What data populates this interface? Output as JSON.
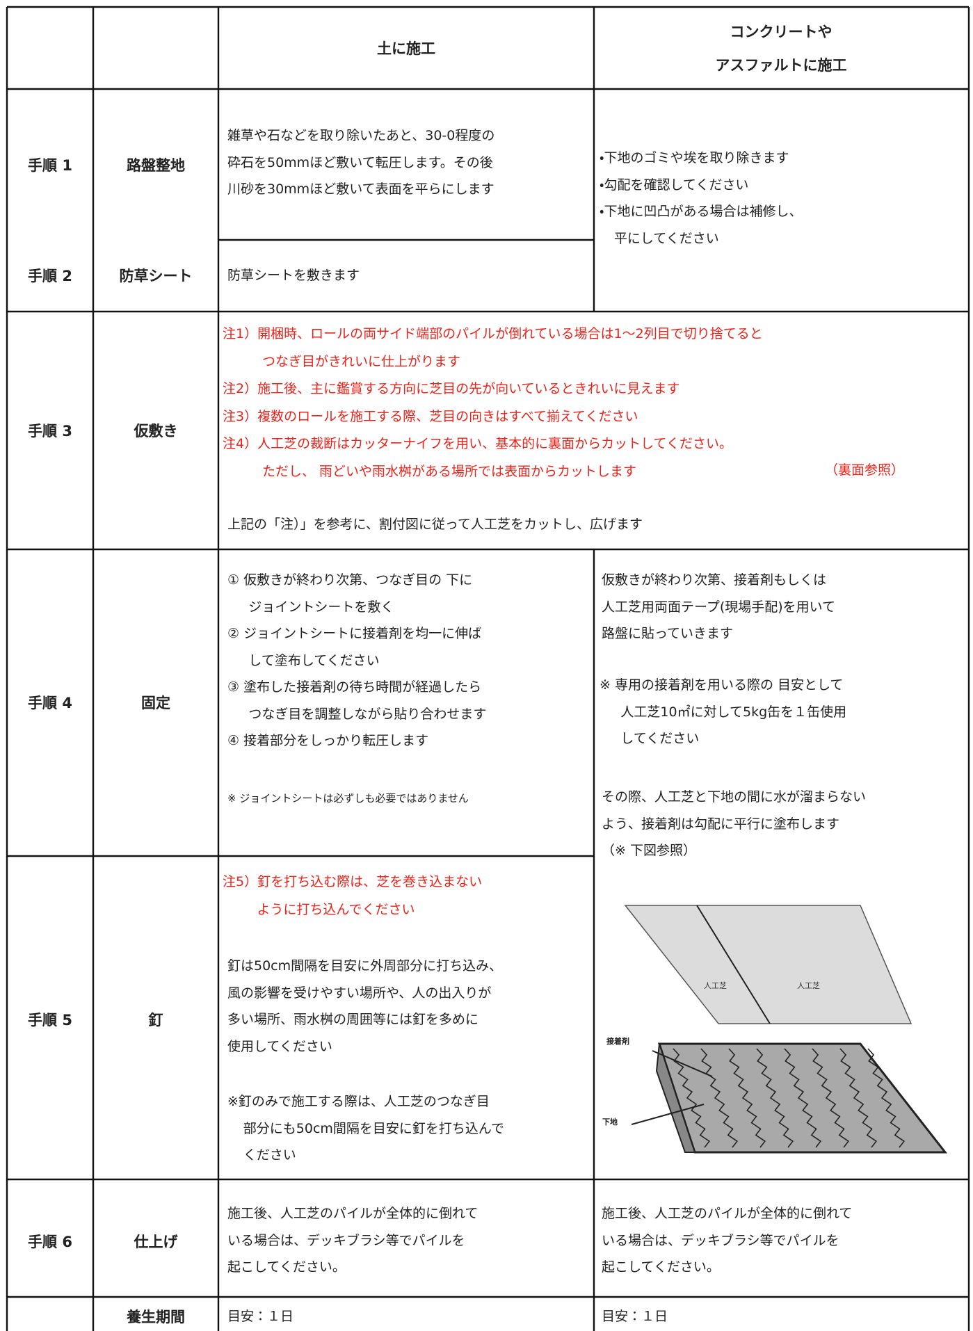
{
  "header": {
    "soil": "土に施工",
    "concrete": [
      "コンクリートや",
      "アスファルトに施工"
    ]
  },
  "steps": [
    {
      "step": "手順 1",
      "name": "路盤整地",
      "soil": [
        [
          "雑草や石などを取り除いたあと、30-0程度の"
        ],
        [
          "砕石を50mmほど敷いて転圧します。その後"
        ],
        [
          "川砂を30mmほど敷いて表面を平らにします"
        ]
      ]
    },
    {
      "step": "手順 2",
      "name": "防草シート",
      "soil": [
        [
          "防草シートを敷きます"
        ]
      ]
    },
    {
      "step": "手順 3",
      "name": "仮敷き",
      "notes": [
        [
          "注1）開梱時、ロールの両サイド端部のパイルが倒れている場合は1〜2列目で切り捨てると",
          "つなぎ目がきれいに仕上がります"
        ],
        [
          "注2）施工後、主に鑑賞する方向に芝目の先が向いているときれいに見えます"
        ],
        [
          "注3）複数のロールを施工する際、芝目の向きはすべて揃えてください"
        ],
        [
          "注4）人工芝の裁断はカッターナイフを用い、基本的に裏面からカットしてください。",
          "ただし、 雨どいや雨水桝がある場所では表面からカットします"
        ]
      ],
      "note_ref": "（裏面参照）",
      "text": "上記の「注）」を参考に、割付図に従って人工芝をカットし、広げます"
    },
    {
      "step": "手順 4",
      "name": "固定",
      "soil": [
        [
          "① 仮敷きが終わり次第、つなぎ目の 下に",
          "ジョイントシートを敷く"
        ],
        [
          "② ジョイントシートに接着剤を均一に伸ば",
          "して塗布してください"
        ],
        [
          "③ 塗布した接着剤の待ち時間が経過したら",
          "つなぎ目を調整しながら貼り合わせます"
        ],
        [
          "④ 接着部分をしっかり転圧します"
        ]
      ],
      "footnote": "※ ジョイントシートは必ずしも必要ではありません"
    },
    {
      "step": "手順 5",
      "name": "釘",
      "notes": [
        [
          "注5）釘を打ち込む際は、芝を巻き込まない",
          "ように打ち込んでください"
        ]
      ],
      "soil": [
        [
          "釘は50cm間隔を目安に外周部分に打ち込み、"
        ],
        [
          "風の影響を受けやすい場所や、人の出入りが"
        ],
        [
          "多い場所、雨水桝の周囲等には釘を多めに"
        ],
        [
          "使用してください"
        ]
      ],
      "footnote": [
        [
          "※釘のみで施工する際は、人工芝のつなぎ目",
          "部分にも50cm間隔を目安に釘を打ち込んで",
          "ください"
        ]
      ]
    },
    {
      "step": "手順 6",
      "name": "仕上げ",
      "soil": [
        [
          "施工後、人工芝のパイルが全体的に倒れて"
        ],
        [
          "いる場合は、デッキブラシ等でパイルを"
        ],
        [
          "起こしてください。"
        ]
      ],
      "concrete": [
        [
          "施工後、人工芝のパイルが全体的に倒れて"
        ],
        [
          "いる場合は、デッキブラシ等でパイルを"
        ],
        [
          "起こしてください。"
        ]
      ]
    }
  ],
  "concrete_steps_1_2": [
    [
      "・下地のゴミや埃を取り除きます"
    ],
    [
      "・勾配を確認してください"
    ],
    [
      "・下地に凹凸がある場合は補修し、",
      "平にしてください"
    ]
  ],
  "concrete_steps_4_5": {
    "paragraphs": [
      [
        [
          "仮敷きが終わり次第、接着剤もしくは"
        ],
        [
          "人工芝用両面テープ(現場手配)を用いて"
        ],
        [
          "路盤に貼っていきます"
        ]
      ],
      [
        [
          "※ 専用の接着剤を用いる際の 目安として",
          "人工芝10㎡に対して5kg缶を１缶使用",
          "してください"
        ]
      ],
      [
        [
          "その際、人工芝と下地の間に水が溜まらない"
        ],
        [
          "よう、接着剤は勾配に平行に塗布します"
        ],
        [
          "（※ 下図参照）"
        ]
      ]
    ],
    "figure_labels": {
      "turf": "人工芝",
      "adhesive": "接着剤",
      "base": "下地"
    }
  },
  "curing": {
    "name": "養生期間",
    "soil": "目安：１日",
    "concrete": "目安：１日"
  }
}
